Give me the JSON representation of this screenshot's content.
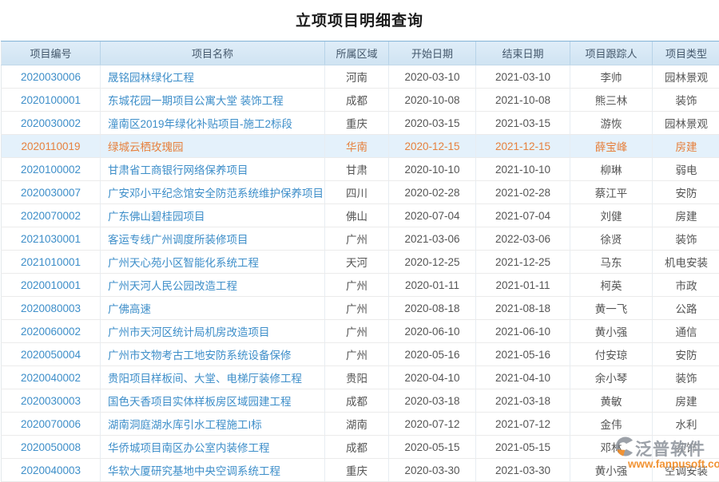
{
  "page": {
    "title": "立项项目明细查询"
  },
  "colors": {
    "link_blue": "#3d8ec9",
    "header_bg": "#d6e7f4",
    "header_border_top": "#88b6d8",
    "highlight_row_bg": "#e4f1fb",
    "highlight_text": "#e6813e",
    "body_text": "#555555"
  },
  "watermark": {
    "brand": "泛普软件",
    "url": "www.fanpusoft.com"
  },
  "table": {
    "columns": [
      {
        "key": "id",
        "label": "项目编号"
      },
      {
        "key": "name",
        "label": "项目名称"
      },
      {
        "key": "region",
        "label": "所属区域"
      },
      {
        "key": "start_date",
        "label": "开始日期"
      },
      {
        "key": "end_date",
        "label": "结束日期"
      },
      {
        "key": "tracker",
        "label": "项目跟踪人"
      },
      {
        "key": "type",
        "label": "项目类型"
      }
    ],
    "rows": [
      {
        "id": "2020030006",
        "name": "晟铭园林绿化工程",
        "region": "河南",
        "start_date": "2020-03-10",
        "end_date": "2021-03-10",
        "tracker": "李帅",
        "type": "园林景观",
        "highlighted": false
      },
      {
        "id": "2020100001",
        "name": "东城花园一期项目公寓大堂 装饰工程",
        "region": "成都",
        "start_date": "2020-10-08",
        "end_date": "2021-10-08",
        "tracker": "熊三林",
        "type": "装饰",
        "highlighted": false
      },
      {
        "id": "2020030002",
        "name": "潼南区2019年绿化补贴项目-施工2标段",
        "region": "重庆",
        "start_date": "2020-03-15",
        "end_date": "2021-03-15",
        "tracker": "游恢",
        "type": "园林景观",
        "highlighted": false
      },
      {
        "id": "2020110019",
        "name": "绿城云栖玫瑰园",
        "region": "华南",
        "start_date": "2020-12-15",
        "end_date": "2021-12-15",
        "tracker": "薛宝峰",
        "type": "房建",
        "highlighted": true
      },
      {
        "id": "2020100002",
        "name": "甘肃省工商银行网络保养项目",
        "region": "甘肃",
        "start_date": "2020-10-10",
        "end_date": "2021-10-10",
        "tracker": "柳琳",
        "type": "弱电",
        "highlighted": false
      },
      {
        "id": "2020030007",
        "name": "广安邓小平纪念馆安全防范系统维护保养项目",
        "region": "四川",
        "start_date": "2020-02-28",
        "end_date": "2021-02-28",
        "tracker": "蔡江平",
        "type": "安防",
        "highlighted": false
      },
      {
        "id": "2020070002",
        "name": "广东佛山碧桂园项目",
        "region": "佛山",
        "start_date": "2020-07-04",
        "end_date": "2021-07-04",
        "tracker": "刘健",
        "type": "房建",
        "highlighted": false
      },
      {
        "id": "2021030001",
        "name": "客运专线广州调度所装修项目",
        "region": "广州",
        "start_date": "2021-03-06",
        "end_date": "2022-03-06",
        "tracker": "徐贤",
        "type": "装饰",
        "highlighted": false
      },
      {
        "id": "2021010001",
        "name": "广州天心苑小区智能化系统工程",
        "region": "天河",
        "start_date": "2020-12-25",
        "end_date": "2021-12-25",
        "tracker": "马东",
        "type": "机电安装",
        "highlighted": false
      },
      {
        "id": "2020010001",
        "name": "广州天河人民公园改造工程",
        "region": "广州",
        "start_date": "2020-01-11",
        "end_date": "2021-01-11",
        "tracker": "柯英",
        "type": "市政",
        "highlighted": false
      },
      {
        "id": "2020080003",
        "name": "广佛高速",
        "region": "广州",
        "start_date": "2020-08-18",
        "end_date": "2021-08-18",
        "tracker": "黄一飞",
        "type": "公路",
        "highlighted": false
      },
      {
        "id": "2020060002",
        "name": "广州市天河区统计局机房改造项目",
        "region": "广州",
        "start_date": "2020-06-10",
        "end_date": "2021-06-10",
        "tracker": "黄小强",
        "type": "通信",
        "highlighted": false
      },
      {
        "id": "2020050004",
        "name": "广州市文物考古工地安防系统设备保修",
        "region": "广州",
        "start_date": "2020-05-16",
        "end_date": "2021-05-16",
        "tracker": "付安琼",
        "type": "安防",
        "highlighted": false
      },
      {
        "id": "2020040002",
        "name": "贵阳项目样板间、大堂、电梯厅装修工程",
        "region": "贵阳",
        "start_date": "2020-04-10",
        "end_date": "2021-04-10",
        "tracker": "余小琴",
        "type": "装饰",
        "highlighted": false
      },
      {
        "id": "2020030003",
        "name": "国色天香项目实体样板房区域园建工程",
        "region": "成都",
        "start_date": "2020-03-18",
        "end_date": "2021-03-18",
        "tracker": "黄敏",
        "type": "房建",
        "highlighted": false
      },
      {
        "id": "2020070006",
        "name": "湖南洞庭湖水库引水工程施工I标",
        "region": "湖南",
        "start_date": "2020-07-12",
        "end_date": "2021-07-12",
        "tracker": "金伟",
        "type": "水利",
        "highlighted": false
      },
      {
        "id": "2020050008",
        "name": "华侨城项目南区办公室内装修工程",
        "region": "成都",
        "start_date": "2020-05-15",
        "end_date": "2021-05-15",
        "tracker": "邓林",
        "type": "装饰",
        "highlighted": false
      },
      {
        "id": "2020040003",
        "name": "华软大厦研究基地中央空调系统工程",
        "region": "重庆",
        "start_date": "2020-03-30",
        "end_date": "2021-03-30",
        "tracker": "黄小强",
        "type": "空调安装",
        "highlighted": false
      }
    ]
  }
}
